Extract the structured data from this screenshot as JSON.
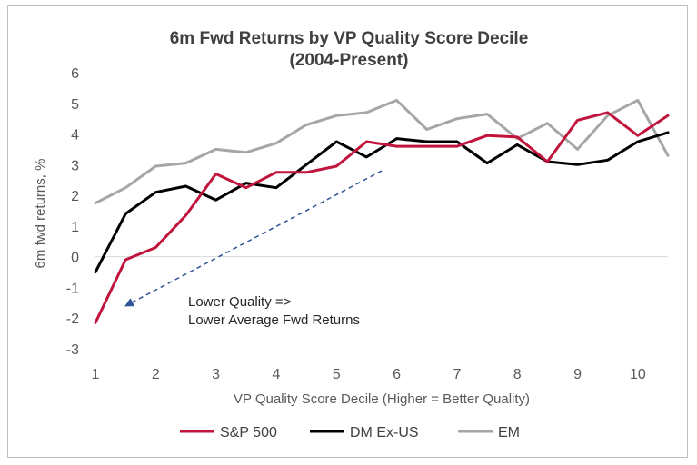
{
  "chart_data": {
    "type": "line",
    "title": "6m Fwd Returns by VP Quality Score Decile",
    "subtitle": "(2004-Present)",
    "xlabel": "VP Quality Score Decile (Higher = Better Quality)",
    "ylabel": "6m fwd returns, %",
    "xlim": [
      1,
      10.5
    ],
    "ylim": [
      -3,
      6
    ],
    "x_ticks": [
      "1",
      "2",
      "3",
      "4",
      "5",
      "6",
      "7",
      "8",
      "9",
      "10"
    ],
    "y_ticks": [
      "6",
      "5",
      "4",
      "3",
      "2",
      "1",
      "0",
      "-1",
      "-2",
      "-3"
    ],
    "x": [
      1,
      1.5,
      2,
      2.5,
      3,
      3.5,
      4,
      4.5,
      5,
      5.5,
      6,
      6.5,
      7,
      7.5,
      8,
      8.5,
      9,
      9.5,
      10,
      10.5
    ],
    "series": [
      {
        "name": "S&P 500",
        "color": "#c0143c",
        "values": [
          -2.15,
          -0.1,
          0.3,
          1.35,
          2.7,
          2.25,
          2.75,
          2.75,
          2.95,
          3.75,
          3.6,
          3.6,
          3.6,
          3.95,
          3.9,
          3.1,
          4.45,
          4.7,
          3.95,
          4.6
        ]
      },
      {
        "name": "DM Ex-US",
        "color": "#000000",
        "values": [
          -0.5,
          1.4,
          2.1,
          2.3,
          1.85,
          2.4,
          2.25,
          3.0,
          3.75,
          3.25,
          3.85,
          3.75,
          3.75,
          3.05,
          3.65,
          3.1,
          3.0,
          3.15,
          3.75,
          4.05
        ]
      },
      {
        "name": "EM",
        "color": "#a6a6a6",
        "values": [
          1.75,
          2.25,
          2.95,
          3.05,
          3.5,
          3.4,
          3.7,
          4.3,
          4.6,
          4.7,
          5.1,
          4.15,
          4.5,
          4.65,
          3.85,
          4.35,
          3.5,
          4.6,
          5.1,
          3.3
        ]
      }
    ],
    "annotation": {
      "line1": "Lower Quality =>",
      "line2": "Lower Average Fwd Returns",
      "arrow_from": [
        5.75,
        2.8
      ],
      "arrow_to": [
        1.55,
        -1.55
      ],
      "color": "#2f5597"
    },
    "legend": "bottom",
    "grid": false
  }
}
